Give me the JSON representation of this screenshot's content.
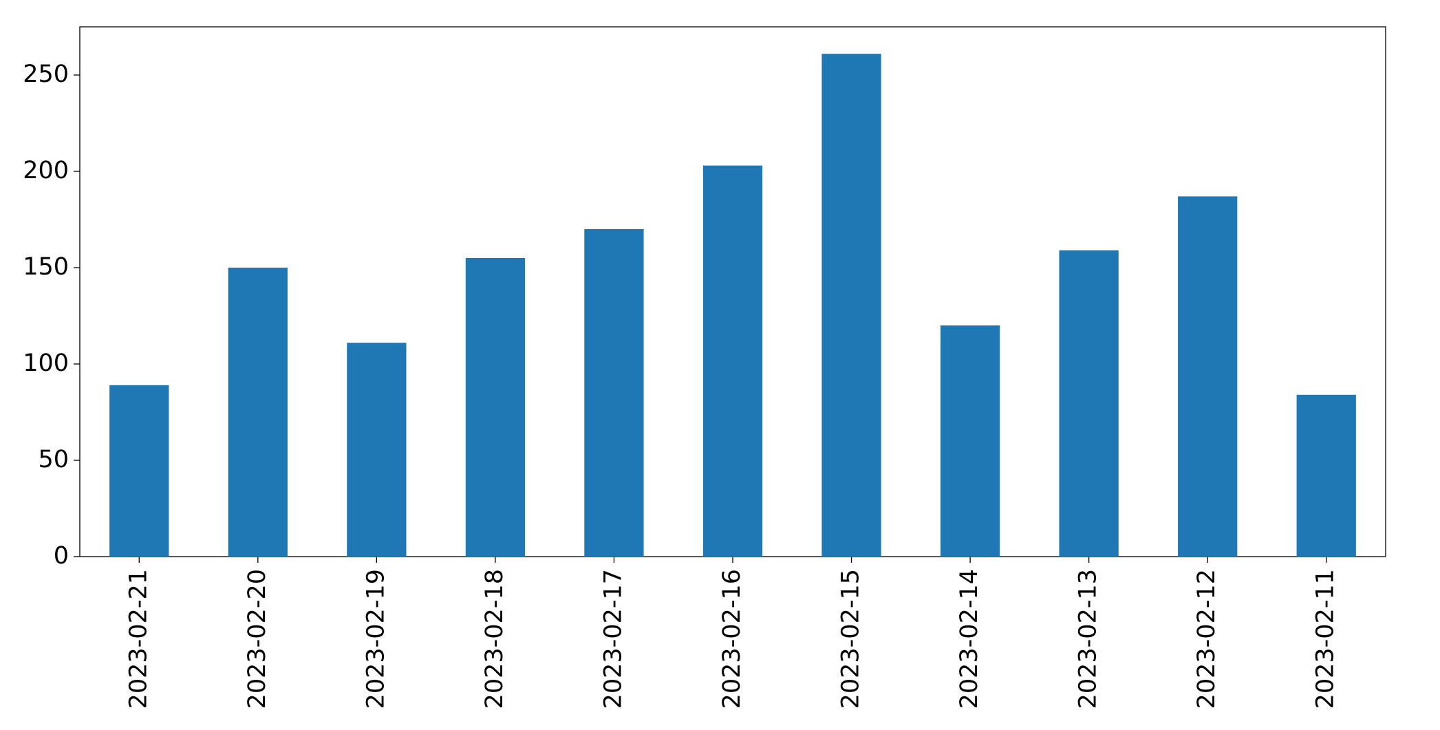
{
  "chart_data": {
    "type": "bar",
    "categories": [
      "2023-02-21",
      "2023-02-20",
      "2023-02-19",
      "2023-02-18",
      "2023-02-17",
      "2023-02-16",
      "2023-02-15",
      "2023-02-14",
      "2023-02-13",
      "2023-02-12",
      "2023-02-11"
    ],
    "values": [
      89,
      150,
      111,
      155,
      170,
      203,
      261,
      120,
      159,
      187,
      84
    ],
    "color": "#1f77b4",
    "ylim": [
      0,
      275
    ],
    "yticks": [
      0,
      50,
      100,
      150,
      200,
      250
    ],
    "grid": false
  }
}
